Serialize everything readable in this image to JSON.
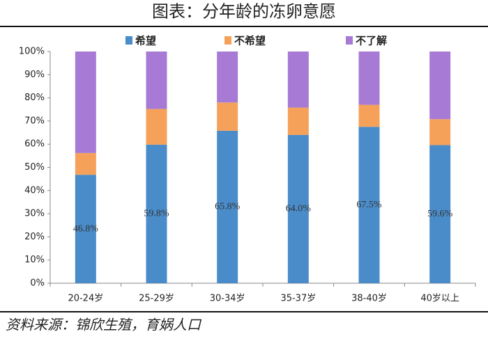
{
  "chart_data": {
    "type": "stacked_bar",
    "title": "图表：分年龄的冻卵意愿",
    "source": "资料来源：锦欣生殖，育娲人口",
    "categories": [
      "20-24岁",
      "25-29岁",
      "30-34岁",
      "35-37岁",
      "38-40岁",
      "40岁以上"
    ],
    "series": [
      {
        "name": "希望",
        "color": "#4a8cc9",
        "values": [
          46.8,
          59.8,
          65.8,
          64.0,
          67.5,
          59.6
        ],
        "value_labels": [
          "46.8%",
          "59.8%",
          "65.8%",
          "64.0%",
          "67.5%",
          "59.6%"
        ]
      },
      {
        "name": "不希望",
        "color": "#f5a15a",
        "values": [
          9.4,
          15.4,
          12.2,
          11.8,
          9.5,
          11.2
        ]
      },
      {
        "name": "不了解",
        "color": "#a77bd5",
        "values": [
          43.8,
          24.8,
          22.0,
          24.2,
          23.0,
          29.2
        ]
      }
    ],
    "ylim": [
      0,
      100
    ],
    "yticks": [
      {
        "value": 0,
        "label": "0%"
      },
      {
        "value": 10,
        "label": "10%"
      },
      {
        "value": 20,
        "label": "20%"
      },
      {
        "value": 30,
        "label": "30%"
      },
      {
        "value": 40,
        "label": "40%"
      },
      {
        "value": 50,
        "label": "50%"
      },
      {
        "value": 60,
        "label": "60%"
      },
      {
        "value": 70,
        "label": "70%"
      },
      {
        "value": 80,
        "label": "80%"
      },
      {
        "value": 90,
        "label": "90%"
      },
      {
        "value": 100,
        "label": "100%"
      }
    ],
    "legend": "top"
  }
}
